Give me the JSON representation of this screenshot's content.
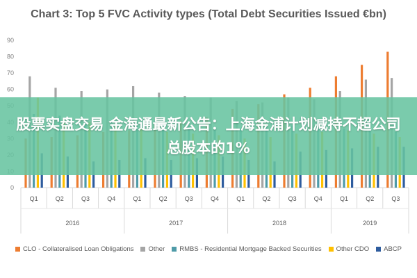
{
  "chart_data": {
    "type": "bar",
    "title": "Chart 3: Top 5 FVC Activity types (Total Debt Securities Issued €bn)",
    "xlabel": "",
    "ylabel": "",
    "ylim": [
      0,
      90
    ],
    "yticks": [
      0,
      10,
      20,
      30,
      40,
      50,
      60,
      70,
      80,
      90
    ],
    "grid": false,
    "legend_position": "bottom",
    "categories": [
      "Q1",
      "Q2",
      "Q3",
      "Q4",
      "Q1",
      "Q2",
      "Q3",
      "Q4",
      "Q1",
      "Q2",
      "Q3",
      "Q4",
      "Q1",
      "Q2",
      "Q3"
    ],
    "groups": [
      {
        "label": "2016",
        "count": 4
      },
      {
        "label": "2017",
        "count": 4
      },
      {
        "label": "2018",
        "count": 4
      },
      {
        "label": "2019",
        "count": 3
      }
    ],
    "series": [
      {
        "name": "CLO - Collateralised Loan Obligations",
        "color": "#ED7D31",
        "values": [
          30,
          31,
          32,
          34,
          35,
          39,
          41,
          43,
          48,
          51,
          57,
          61,
          68,
          75,
          83
        ]
      },
      {
        "name": "Other",
        "color": "#A5A5A5",
        "values": [
          68,
          61,
          59,
          60,
          62,
          58,
          56,
          55,
          53,
          52,
          55,
          54,
          59,
          66,
          67
        ]
      },
      {
        "name": "RMBS - Residential Mortgage Backed Securities",
        "color": "#4F9BA8",
        "values": [
          45,
          44,
          42,
          41,
          40,
          39,
          38,
          37,
          36,
          37,
          38,
          37,
          36,
          35,
          34
        ]
      },
      {
        "name": "Other CDO",
        "color": "#FFC000",
        "values": [
          55,
          42,
          40,
          38,
          36,
          34,
          33,
          32,
          30,
          31,
          33,
          34,
          35,
          33,
          31
        ]
      },
      {
        "name": "ABCP",
        "color": "#2E5C9E",
        "values": [
          21,
          19,
          16,
          17,
          18,
          17,
          18,
          19,
          17,
          16,
          22,
          23,
          24,
          25,
          25
        ]
      }
    ]
  },
  "overlay": {
    "text": "股票实盘交易 金海通最新公告：上海金浦计划减持不超公司总股本的1%"
  }
}
